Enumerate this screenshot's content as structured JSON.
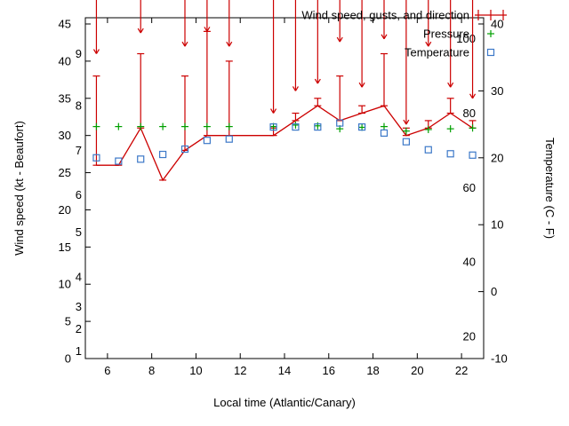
{
  "page": {
    "background": "#ffffff",
    "description": "gnuplot-style weather station graph"
  },
  "chart_data": {
    "type": "line",
    "title": "",
    "xlabel": "Local time (Atlantic/Canary)",
    "ylabel_left": "Wind speed (kt - Beaufort)",
    "ylabel_right": "Temperature (C - F)",
    "grid": false,
    "legend_position": "top-right",
    "x_range": [
      5,
      23
    ],
    "y_left_range_kt": [
      0,
      45
    ],
    "y_right_range_c": [
      -10,
      40
    ],
    "x_ticks": [
      6,
      8,
      10,
      12,
      14,
      16,
      18,
      20,
      22
    ],
    "y_left_ticks_kt": [
      0,
      5,
      10,
      15,
      20,
      25,
      30,
      35,
      40,
      45
    ],
    "y_right_ticks_c": [
      -10,
      0,
      10,
      20,
      30,
      40
    ],
    "beaufort_marks": [
      {
        "label": "1",
        "kt": 1
      },
      {
        "label": "2",
        "kt": 4
      },
      {
        "label": "3",
        "kt": 7
      },
      {
        "label": "4",
        "kt": 11
      },
      {
        "label": "5",
        "kt": 17
      },
      {
        "label": "6",
        "kt": 22
      },
      {
        "label": "7",
        "kt": 28
      },
      {
        "label": "8",
        "kt": 34
      },
      {
        "label": "9",
        "kt": 41
      }
    ],
    "fahrenheit_marks": [
      {
        "label": "20",
        "c": -6.67
      },
      {
        "label": "40",
        "c": 4.44
      },
      {
        "label": "60",
        "c": 15.56
      },
      {
        "label": "80",
        "c": 26.67
      },
      {
        "label": "100",
        "c": 37.78
      }
    ],
    "legend": [
      {
        "label": "Wind speed, gusts, and direction",
        "series": "wind",
        "marker": "errorbar",
        "color": "#cc0000"
      },
      {
        "label": "Pressure",
        "series": "pressure",
        "marker": "plus",
        "color": "#00a000"
      },
      {
        "label": "Temperature",
        "series": "temperature",
        "marker": "square",
        "color": "#3c78c8"
      }
    ],
    "series": {
      "time": [
        5.5,
        6.5,
        7.5,
        8.5,
        9.5,
        10.5,
        11.5,
        13.5,
        14.5,
        15.5,
        16.5,
        17.5,
        18.5,
        19.5,
        20.5,
        21.5,
        22.5
      ],
      "wind_kt": [
        26,
        26,
        31,
        24,
        28,
        30,
        30,
        30,
        32,
        34,
        32,
        33,
        34,
        30,
        31,
        33,
        31
      ],
      "gust_kt": [
        38,
        26,
        41,
        24,
        38,
        44,
        40,
        31,
        33,
        35,
        38,
        34,
        41,
        31,
        32,
        35,
        32
      ],
      "direction_arrow_tip_kt": [
        41,
        null,
        43.8,
        null,
        42,
        44,
        42,
        33,
        36,
        37,
        42.6,
        36.5,
        43,
        31.5,
        42,
        36.5,
        35
      ],
      "direction_arrow_length_kt": 2.4,
      "pressure_plot_kt": [
        31.2,
        31.2,
        31.2,
        31.2,
        31.2,
        31.2,
        31.2,
        31.2,
        31.4,
        31.3,
        30.9,
        31.1,
        31.2,
        30.6,
        30.8,
        30.9,
        31
      ],
      "temperature_c": [
        20,
        19.5,
        19.8,
        20.5,
        21.3,
        22.6,
        22.8,
        24.6,
        24.6,
        24.6,
        25.2,
        24.6,
        23.7,
        22.4,
        21.2,
        20.6,
        20.4
      ]
    },
    "colors": {
      "wind": "#cc0000",
      "pressure": "#00a000",
      "temperature": "#3c78c8",
      "axis": "#000000",
      "background": "#ffffff"
    }
  }
}
